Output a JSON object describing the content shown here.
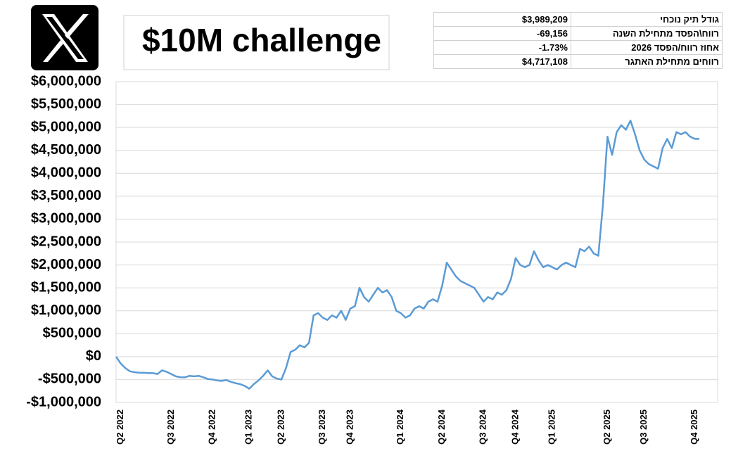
{
  "chart_data": {
    "type": "line",
    "title": "$10M challenge",
    "categories": [
      null,
      "Q2 2022",
      null,
      null,
      null,
      null,
      null,
      null,
      null,
      null,
      null,
      null,
      "Q3 2022",
      null,
      null,
      null,
      null,
      null,
      null,
      null,
      null,
      "Q4 2022",
      null,
      null,
      null,
      null,
      null,
      null,
      null,
      "Q1 2023",
      null,
      null,
      null,
      null,
      null,
      null,
      "Q2 2023",
      null,
      null,
      null,
      null,
      null,
      null,
      null,
      null,
      "Q3 2023",
      null,
      null,
      null,
      null,
      null,
      "Q4 2023",
      null,
      null,
      null,
      null,
      null,
      null,
      null,
      null,
      null,
      null,
      "Q1 2024",
      null,
      null,
      null,
      null,
      null,
      null,
      null,
      null,
      "Q2 2024",
      null,
      null,
      null,
      null,
      null,
      null,
      null,
      null,
      "Q3 2024",
      null,
      null,
      null,
      null,
      null,
      null,
      "Q4 2024",
      null,
      null,
      null,
      null,
      null,
      null,
      null,
      "Q1 2025",
      null,
      null,
      null,
      null,
      null,
      null,
      null,
      null,
      null,
      null,
      null,
      "Q2 2025",
      null,
      null,
      null,
      null,
      null,
      null,
      null,
      "Q3 2025",
      null,
      null,
      null,
      null,
      null,
      null,
      null,
      null,
      null,
      null,
      "Q4 2025",
      null
    ],
    "series": [
      {
        "color": "#5b9bd5",
        "values": [
          0,
          -150000,
          -250000,
          -320000,
          -340000,
          -350000,
          -350000,
          -360000,
          -360000,
          -380000,
          -300000,
          -330000,
          -380000,
          -430000,
          -450000,
          -450000,
          -420000,
          -430000,
          -420000,
          -450000,
          -490000,
          -500000,
          -520000,
          -530000,
          -510000,
          -550000,
          -580000,
          -600000,
          -640000,
          -700000,
          -600000,
          -520000,
          -420000,
          -300000,
          -430000,
          -480000,
          -500000,
          -250000,
          100000,
          150000,
          250000,
          200000,
          300000,
          900000,
          950000,
          850000,
          800000,
          900000,
          850000,
          1000000,
          800000,
          1050000,
          1100000,
          1500000,
          1300000,
          1200000,
          1350000,
          1500000,
          1400000,
          1450000,
          1300000,
          1000000,
          950000,
          850000,
          900000,
          1050000,
          1100000,
          1050000,
          1200000,
          1250000,
          1200000,
          1550000,
          2050000,
          1900000,
          1750000,
          1650000,
          1600000,
          1550000,
          1500000,
          1350000,
          1200000,
          1300000,
          1250000,
          1400000,
          1350000,
          1450000,
          1700000,
          2150000,
          2000000,
          1950000,
          2000000,
          2300000,
          2100000,
          1950000,
          2000000,
          1950000,
          1900000,
          2000000,
          2050000,
          2000000,
          1950000,
          2350000,
          2300000,
          2400000,
          2250000,
          2200000,
          3300000,
          4800000,
          4400000,
          4900000,
          5050000,
          4950000,
          5150000,
          4850000,
          4500000,
          4300000,
          4200000,
          4150000,
          4100000,
          4550000,
          4750000,
          4550000,
          4900000,
          4850000,
          4900000,
          4800000,
          4750000,
          4750000
        ]
      }
    ],
    "ylim": [
      -1000000,
      6000000
    ],
    "yticks": [
      {
        "value": -1000000,
        "label": "-$1,000,000"
      },
      {
        "value": -500000,
        "label": "-$500,000"
      },
      {
        "value": 0,
        "label": "$0"
      },
      {
        "value": 500000,
        "label": "$500,000"
      },
      {
        "value": 1000000,
        "label": "$1,000,000"
      },
      {
        "value": 1500000,
        "label": "$1,500,000"
      },
      {
        "value": 2000000,
        "label": "$2,000,000"
      },
      {
        "value": 2500000,
        "label": "$2,500,000"
      },
      {
        "value": 3000000,
        "label": "$3,000,000"
      },
      {
        "value": 3500000,
        "label": "$3,500,000"
      },
      {
        "value": 4000000,
        "label": "$4,000,000"
      },
      {
        "value": 4500000,
        "label": "$4,500,000"
      },
      {
        "value": 5000000,
        "label": "$5,000,000"
      },
      {
        "value": 5500000,
        "label": "$5,500,000"
      },
      {
        "value": 6000000,
        "label": "$6,000,000"
      }
    ],
    "grid": true
  },
  "table": {
    "rows": [
      [
        "גודל תיק נוכחי",
        "$3,989,209"
      ],
      [
        "רווח\\הפסד מתחילת השנה",
        "-69,156"
      ],
      [
        "אחוז רווח/הפסד 2026",
        "-1.73%"
      ],
      [
        "רווחים מתחילת האתגר",
        "$4,717,108"
      ]
    ]
  }
}
